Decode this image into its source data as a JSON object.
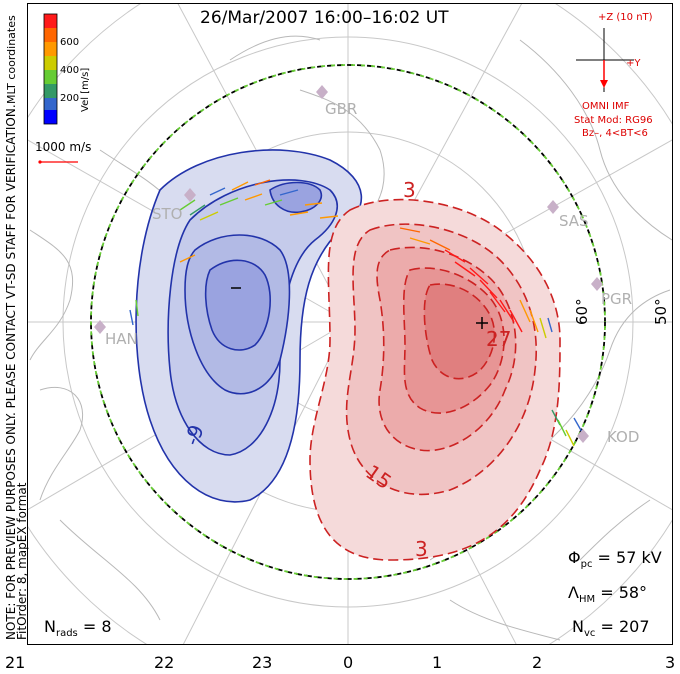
{
  "title": "26/Mar/2007 16:00–16:02 UT",
  "note_line1": "NOTE: FOR PREVIEW PURPOSES ONLY. PLEASE CONTACT VT-SD STAFF FOR VERIFICATION.",
  "note_line2": "FitOrder: 8, mapEX format",
  "mlt_label": "MLT coordinates",
  "colorbar": {
    "label": "Vel [m/s]",
    "ticks": [
      "600",
      "400",
      "200"
    ],
    "colors": [
      "#ff1a1a",
      "#ff6600",
      "#ff9900",
      "#cccc00",
      "#66cc33",
      "#339966",
      "#3366cc",
      "#0000ff"
    ]
  },
  "vel_scale": "1000 m/s",
  "imf": {
    "top": "+Z (10 nT)",
    "right": "+Y",
    "caption": "OMNI IMF",
    "model_line1": "Stat Mod: RG96",
    "model_line2": "Bz–, 4<BT<6"
  },
  "stations": [
    "GBR",
    "SAS",
    "PGR",
    "KOD",
    "HAN",
    "STO"
  ],
  "lat_labels": [
    "60°",
    "50°"
  ],
  "contour_labels": [
    "3",
    "15",
    "27",
    "3",
    "-9"
  ],
  "stats": {
    "phi_pc": "Φ",
    "phi_sub": "pc",
    "phi_val": "= 57 kV",
    "lambda": "Λ",
    "lambda_sub": "HM",
    "lambda_val": "= 58°",
    "nvc": "N",
    "nvc_sub": "vc",
    "nvc_val": "= 207",
    "nrads": "N",
    "nrads_sub": "rads",
    "nrads_val": "= 8"
  },
  "mlt_ticks": [
    "21",
    "22",
    "23",
    "0",
    "1",
    "2",
    "3"
  ],
  "colors": {
    "negative": "#2233aa",
    "positive": "#cc2222",
    "boundary_green": "#66cc33"
  }
}
